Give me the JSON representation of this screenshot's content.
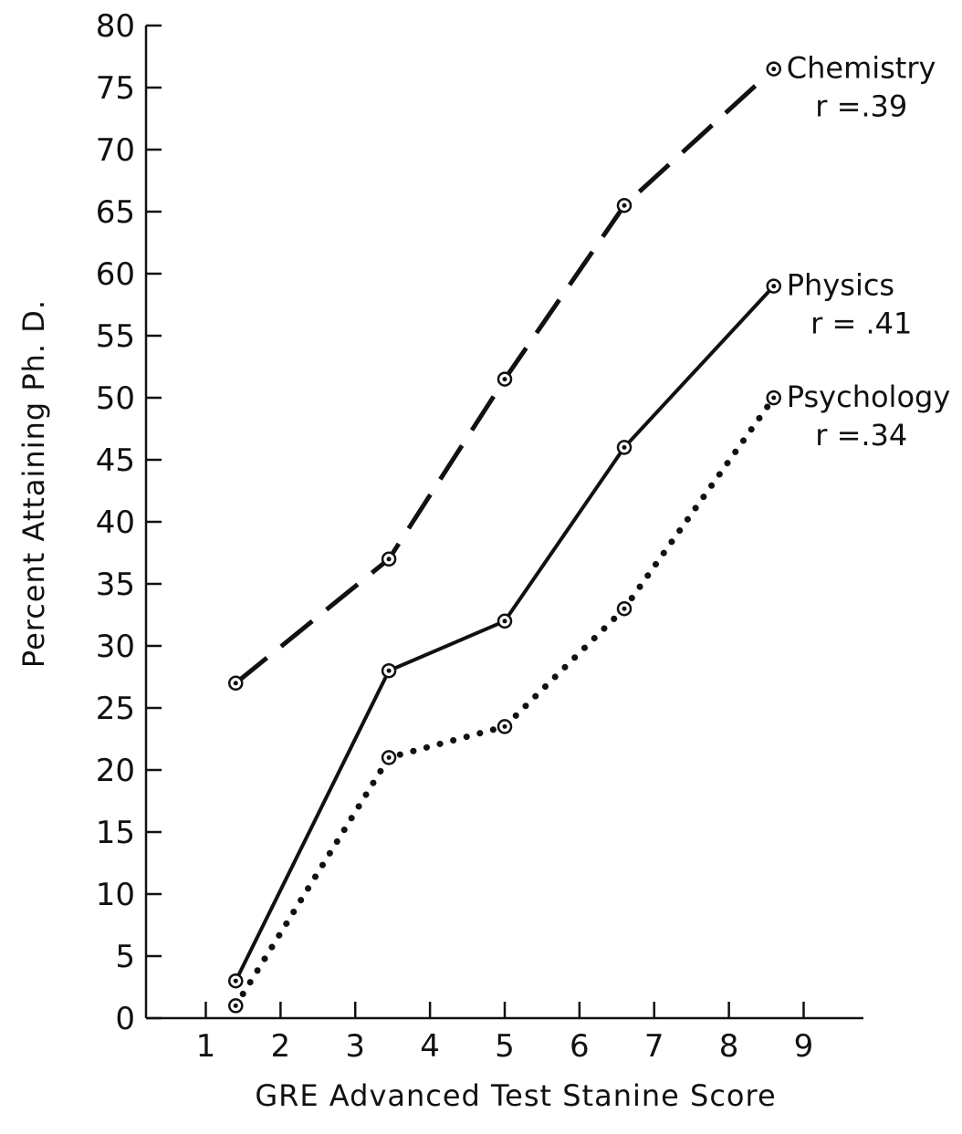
{
  "chart_data": {
    "type": "line",
    "xlabel": "GRE Advanced Test Stanine Score",
    "ylabel": "Percent Attaining Ph. D.",
    "xlim": [
      0.2,
      9.8
    ],
    "ylim": [
      0,
      80
    ],
    "x_ticks": [
      1,
      2,
      3,
      4,
      5,
      6,
      7,
      8,
      9
    ],
    "x_tick_labels": [
      "1",
      "2",
      "3",
      "4",
      "5",
      "6",
      "7",
      "8",
      "9"
    ],
    "y_ticks": [
      0,
      5,
      10,
      15,
      20,
      25,
      30,
      35,
      40,
      45,
      50,
      55,
      60,
      65,
      70,
      75,
      80
    ],
    "y_tick_labels": [
      "0",
      "5",
      "10",
      "15",
      "20",
      "25",
      "30",
      "35",
      "40",
      "45",
      "50",
      "55",
      "60",
      "65",
      "70",
      "75",
      "80"
    ],
    "grid": false,
    "legend": "direct labels at right end of each line",
    "series": [
      {
        "name": "Chemistry",
        "correlation": "r =.39",
        "line_style": "dashed",
        "color": "#111111",
        "x": [
          1.4,
          3.45,
          5.0,
          6.6,
          8.6
        ],
        "values": [
          27,
          37,
          51.5,
          65.5,
          76.5
        ]
      },
      {
        "name": "Physics",
        "correlation": "r = .41",
        "line_style": "solid",
        "color": "#111111",
        "x": [
          1.4,
          3.45,
          5.0,
          6.6,
          8.6
        ],
        "values": [
          3,
          28,
          32,
          46,
          59
        ]
      },
      {
        "name": "Psychology",
        "correlation": "r =.34",
        "line_style": "dotted",
        "color": "#111111",
        "x": [
          1.4,
          3.45,
          5.0,
          6.6,
          8.6
        ],
        "values": [
          1,
          21,
          23.5,
          33,
          50
        ]
      }
    ]
  }
}
